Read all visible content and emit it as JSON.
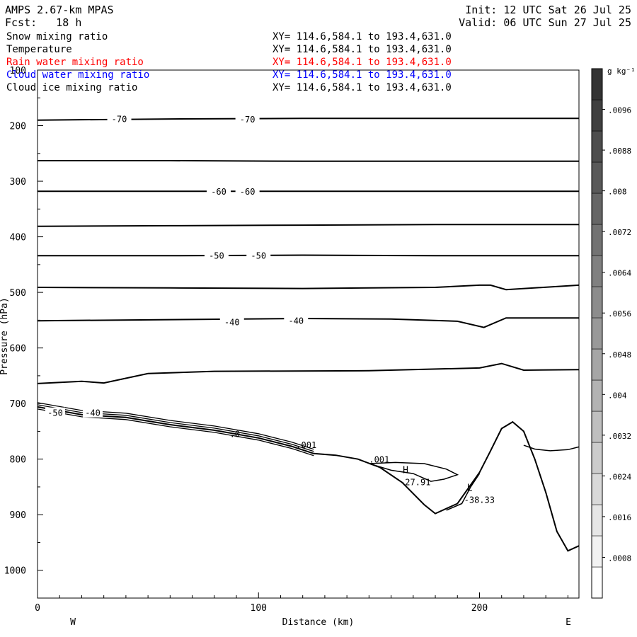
{
  "header": {
    "model": "AMPS 2.67-km MPAS",
    "forecast": "Fcst:   18 h",
    "init": "Init: 12 UTC Sat 26 Jul 25",
    "valid": "Valid: 06 UTC Sun 27 Jul 25"
  },
  "fields": [
    {
      "name": "Snow mixing ratio",
      "xy": "XY= 114.6,584.1 to 193.4,631.0",
      "color": "#000000"
    },
    {
      "name": "Temperature",
      "xy": "XY= 114.6,584.1 to 193.4,631.0",
      "color": "#000000"
    },
    {
      "name": "Rain water mixing ratio",
      "xy": "XY= 114.6,584.1 to 193.4,631.0",
      "color": "#ff0000"
    },
    {
      "name": "Cloud water mixing ratio",
      "xy": "XY= 114.6,584.1 to 193.4,631.0",
      "color": "#0000ff"
    },
    {
      "name": "Cloud ice mixing ratio",
      "xy": "XY= 114.6,584.1 to 193.4,631.0",
      "color": "#000000"
    }
  ],
  "chart_data": {
    "type": "line",
    "xlabel": "Distance (km)",
    "ylabel": "Pressure (hPa)",
    "xlim": [
      0,
      245
    ],
    "ylim": [
      1050,
      100
    ],
    "x_ticks": [
      0,
      100,
      200
    ],
    "y_ticks": [
      100,
      200,
      300,
      400,
      500,
      600,
      700,
      800,
      900,
      1000
    ],
    "direction_labels": {
      "left": "W",
      "right": "E"
    },
    "isotherm_labels": [
      "-70",
      "-70",
      "-60",
      "-60",
      "-50",
      "-50",
      "-40",
      "-40",
      "-50",
      "-40"
    ],
    "extrema_labels": [
      {
        "mark": "H",
        "value": "-27.91",
        "x": 164,
        "p": 833
      },
      {
        "mark": "L",
        "value": "-38.33",
        "x": 193,
        "p": 865
      }
    ],
    "contour_labels": [
      {
        "text": ".0",
        "x": 87,
        "p": 760
      },
      {
        "text": ".001",
        "x": 117,
        "p": 780
      },
      {
        "text": ".001",
        "x": 150,
        "p": 806
      }
    ],
    "isotherms": [
      {
        "level": -70,
        "x": [
          0,
          60,
          120,
          180,
          245
        ],
        "p": [
          190,
          188,
          187,
          187,
          187
        ],
        "label_at": [
          {
            "x": 37,
            "p": 187,
            "text": "-70"
          },
          {
            "x": 95,
            "p": 188,
            "text": "-70"
          }
        ]
      },
      {
        "level": -65,
        "x": [
          0,
          60,
          120,
          180,
          245
        ],
        "p": [
          263,
          263,
          264,
          264,
          264
        ]
      },
      {
        "level": -60,
        "x": [
          0,
          60,
          120,
          180,
          245
        ],
        "p": [
          318,
          318,
          318,
          318,
          318
        ],
        "label_at": [
          {
            "x": 82,
            "p": 318,
            "text": "-60"
          },
          {
            "x": 95,
            "p": 318,
            "text": "-60"
          }
        ]
      },
      {
        "level": -55,
        "x": [
          0,
          60,
          120,
          180,
          245
        ],
        "p": [
          381,
          380,
          379,
          378,
          378
        ]
      },
      {
        "level": -50,
        "x": [
          0,
          60,
          120,
          180,
          245
        ],
        "p": [
          434,
          434,
          433,
          434,
          434
        ],
        "label_at": [
          {
            "x": 81,
            "p": 433,
            "text": "-50"
          },
          {
            "x": 100,
            "p": 433,
            "text": "-50"
          }
        ]
      },
      {
        "level": -45,
        "x": [
          0,
          60,
          120,
          180,
          200,
          205,
          212,
          245
        ],
        "p": [
          491,
          492,
          493,
          491,
          487,
          487,
          495,
          487
        ]
      },
      {
        "level": -40,
        "x": [
          0,
          60,
          120,
          160,
          190,
          202,
          212,
          245
        ],
        "p": [
          551,
          549,
          547,
          548,
          552,
          563,
          546,
          546
        ],
        "label_at": [
          {
            "x": 88,
            "p": 553,
            "text": "-40"
          },
          {
            "x": 117,
            "p": 550,
            "text": "-40"
          }
        ]
      },
      {
        "level": -35,
        "x": [
          0,
          20,
          30,
          50,
          80,
          150,
          200,
          210,
          220,
          245
        ],
        "p": [
          664,
          660,
          663,
          646,
          642,
          641,
          636,
          628,
          640,
          639
        ]
      }
    ],
    "terrain": {
      "x": [
        0,
        20,
        40,
        60,
        80,
        100,
        115,
        125,
        135,
        145,
        155,
        165,
        175,
        180,
        190,
        200,
        205,
        210,
        215,
        220,
        225,
        230,
        235,
        240,
        245
      ],
      "p": [
        706,
        720,
        725,
        738,
        748,
        762,
        777,
        790,
        793,
        800,
        815,
        842,
        882,
        898,
        880,
        824,
        785,
        745,
        733,
        750,
        800,
        860,
        930,
        965,
        956
      ]
    }
  },
  "colorbar": {
    "unit": "g kg⁻¹",
    "ticks": [
      ".0096",
      ".0088",
      ".008",
      ".0072",
      ".0064",
      ".0056",
      ".0048",
      ".004",
      ".0032",
      ".0024",
      ".0016",
      ".0008"
    ],
    "colors": [
      "#ffffff",
      "#f2f2f2",
      "#e6e6e6",
      "#d9d9d9",
      "#cccccc",
      "#bfbfbf",
      "#b3b3b3",
      "#a6a6a6",
      "#999999",
      "#8c8c8c",
      "#808080",
      "#737373",
      "#666666",
      "#595959",
      "#4d4d4d",
      "#404040",
      "#333333"
    ]
  }
}
